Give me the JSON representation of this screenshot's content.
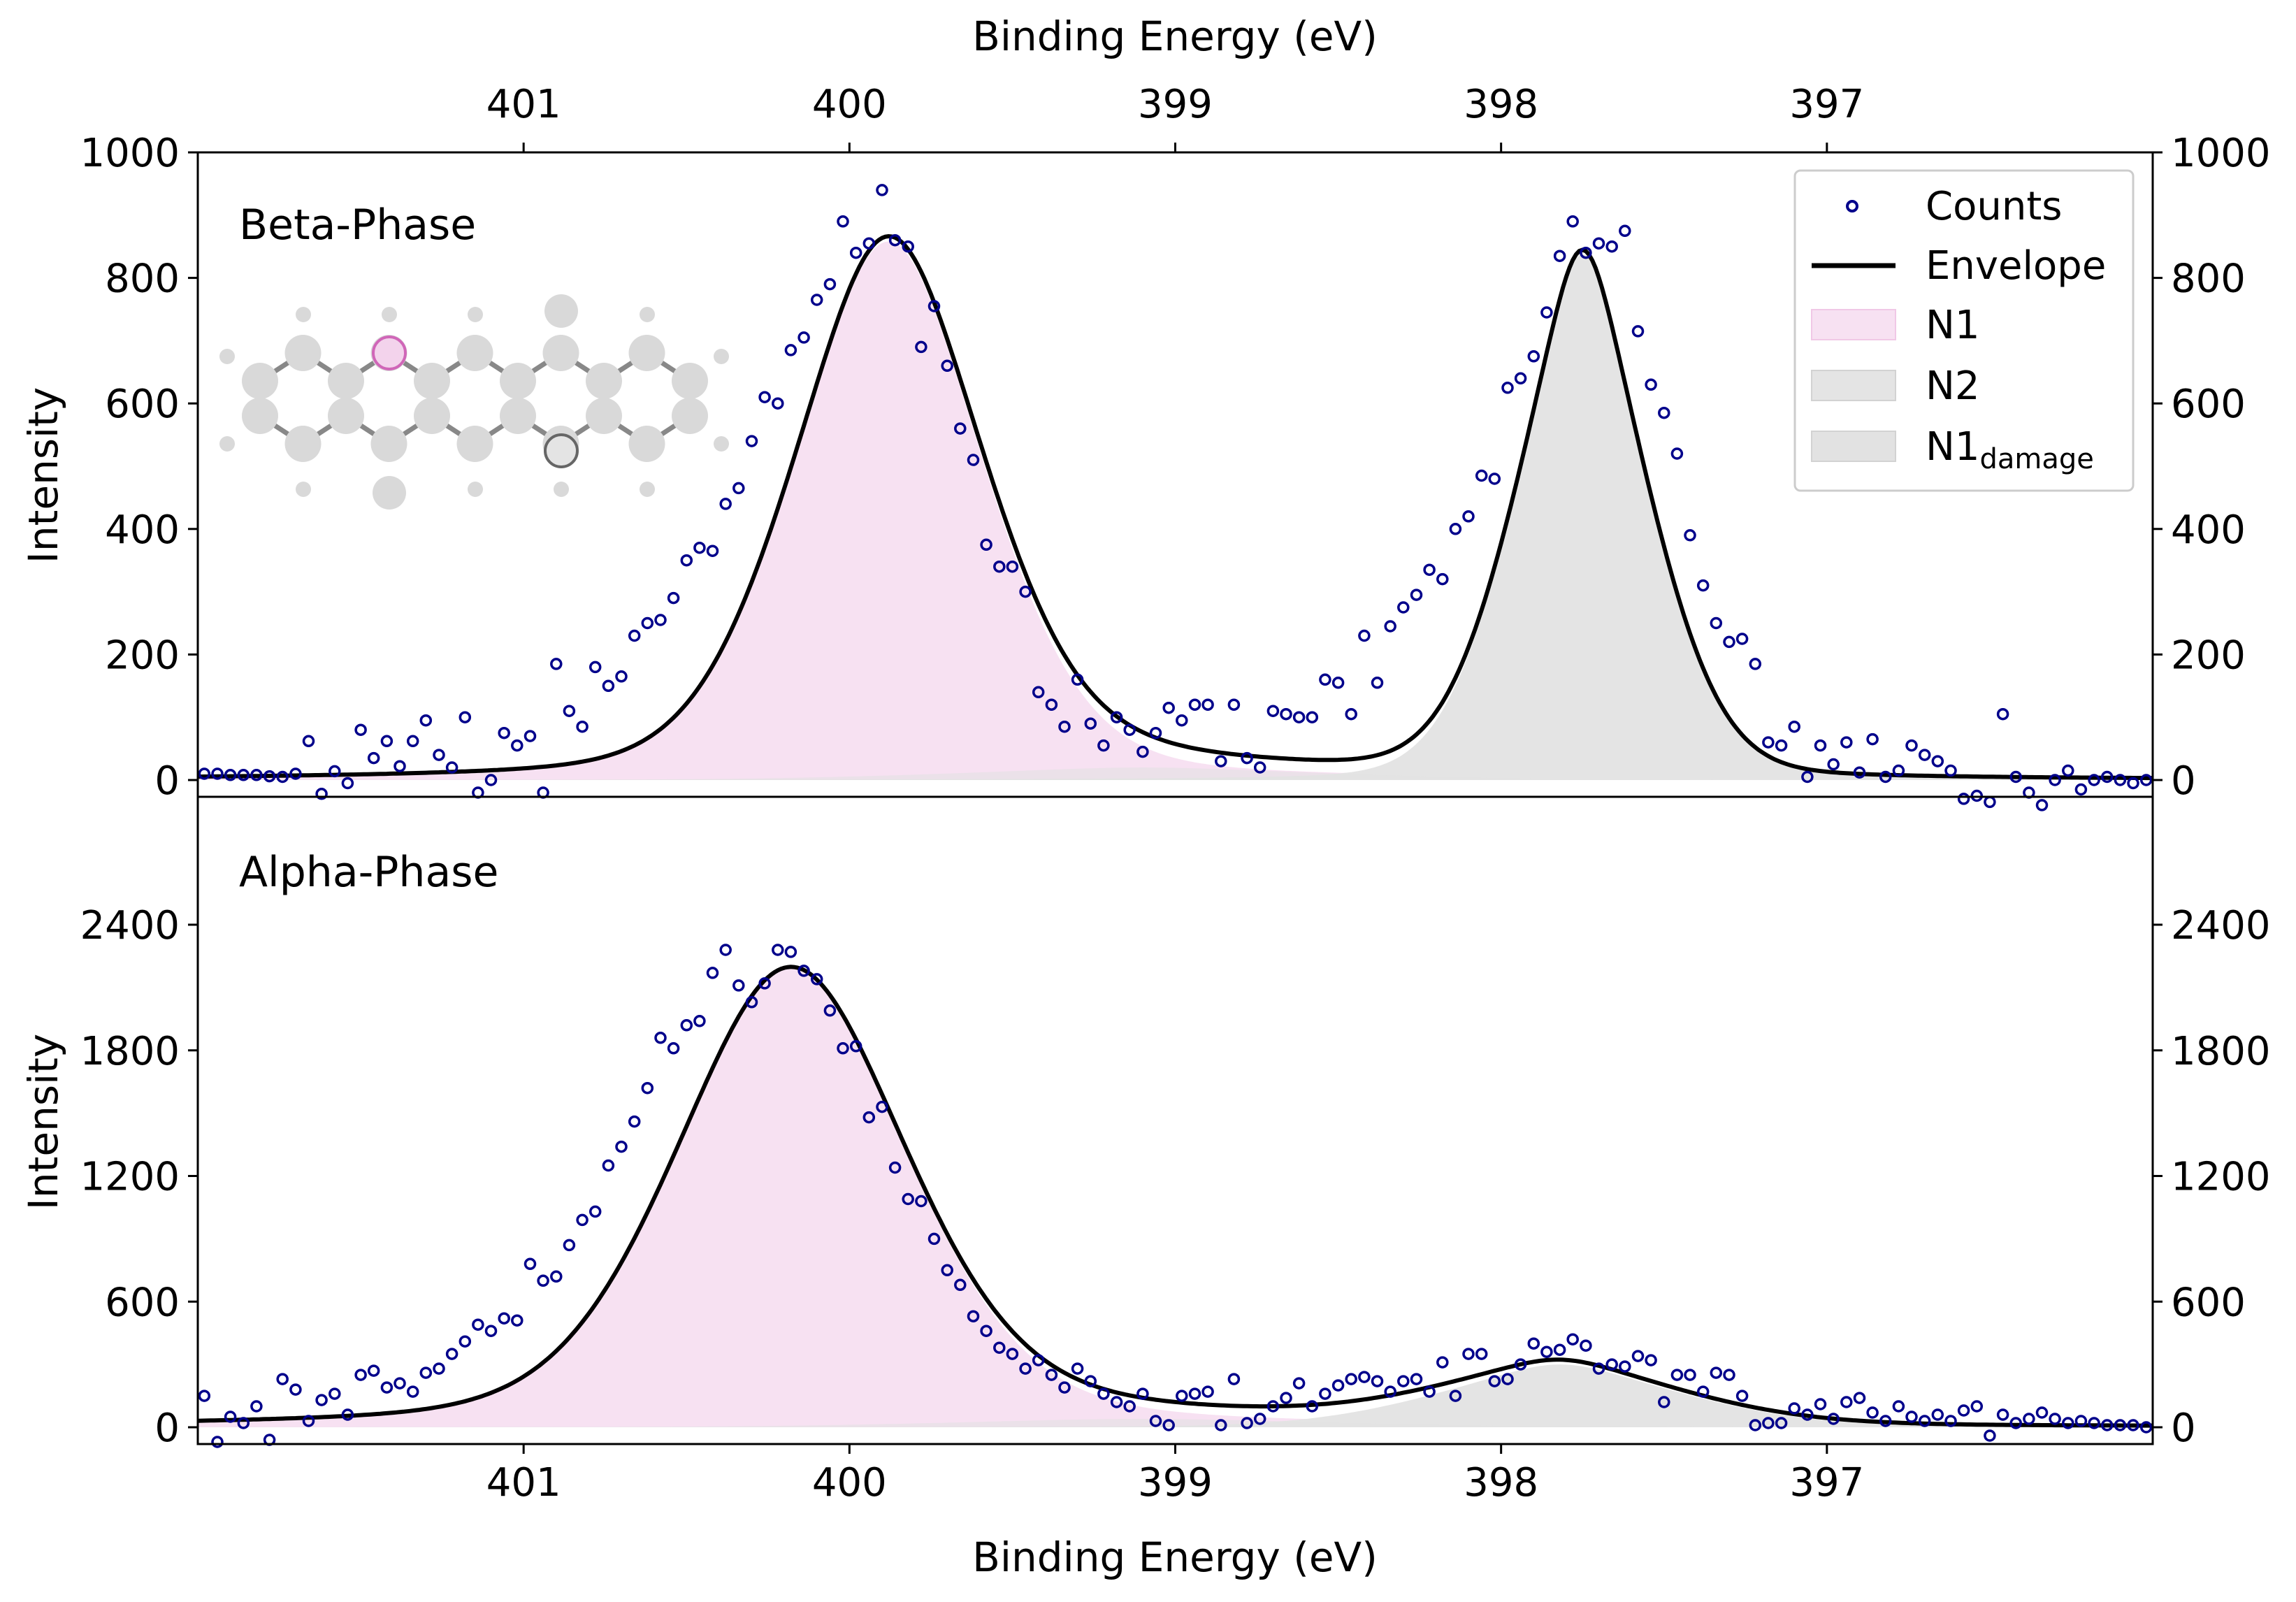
{
  "chart_data": [
    {
      "panel": "top",
      "type": "scatter",
      "title": "Beta-Phase",
      "xlabel_top": "Binding Energy (eV)",
      "ylabel": "Intensity",
      "xlim": [
        402.0,
        396.0
      ],
      "ylim": [
        -30,
        1000
      ],
      "xticks": [
        401,
        400,
        399,
        398,
        397
      ],
      "yticks": [
        0,
        200,
        400,
        600,
        800,
        1000
      ],
      "colors": {
        "counts": "#00008b",
        "envelope": "#000000",
        "N1": "#f7e1f2",
        "N2": "#e4e4e4",
        "N1_damage": "#e2e2e2"
      },
      "legend": {
        "placement": "top-right",
        "entries": [
          {
            "label": "Counts",
            "kind": "marker"
          },
          {
            "label": "Envelope",
            "kind": "line"
          },
          {
            "label": "N1",
            "kind": "patch",
            "color": "#f7e1f2"
          },
          {
            "label": "N2",
            "kind": "patch",
            "color": "#e4e4e4"
          },
          {
            "label": "N1",
            "sub": "damage",
            "kind": "patch",
            "color": "#e2e2e2"
          }
        ]
      },
      "components": [
        {
          "name": "N1",
          "center": 399.88,
          "amplitude": 858,
          "sigma": 0.3,
          "gamma": 0.3
        },
        {
          "name": "N2",
          "center": 397.75,
          "amplitude": 838,
          "sigma": 0.22,
          "gamma": 0.14
        },
        {
          "name": "N1 damage",
          "center": 399.1,
          "amplitude": 20,
          "sigma": 0.6,
          "gamma": 0.4
        }
      ],
      "counts": [
        [
          401.98,
          10
        ],
        [
          401.94,
          10
        ],
        [
          401.9,
          8
        ],
        [
          401.86,
          8
        ],
        [
          401.82,
          8
        ],
        [
          401.78,
          6
        ],
        [
          401.74,
          5
        ],
        [
          401.7,
          10
        ],
        [
          401.66,
          62
        ],
        [
          401.62,
          -22
        ],
        [
          401.58,
          14
        ],
        [
          401.54,
          -5
        ],
        [
          401.5,
          80
        ],
        [
          401.46,
          35
        ],
        [
          401.42,
          62
        ],
        [
          401.38,
          22
        ],
        [
          401.34,
          62
        ],
        [
          401.3,
          95
        ],
        [
          401.26,
          40
        ],
        [
          401.22,
          20
        ],
        [
          401.18,
          100
        ],
        [
          401.14,
          -20
        ],
        [
          401.1,
          0
        ],
        [
          401.06,
          75
        ],
        [
          401.02,
          55
        ],
        [
          400.98,
          70
        ],
        [
          400.94,
          -20
        ],
        [
          400.9,
          185
        ],
        [
          400.86,
          110
        ],
        [
          400.82,
          85
        ],
        [
          400.78,
          180
        ],
        [
          400.74,
          150
        ],
        [
          400.7,
          165
        ],
        [
          400.66,
          230
        ],
        [
          400.62,
          250
        ],
        [
          400.58,
          255
        ],
        [
          400.54,
          290
        ],
        [
          400.5,
          350
        ],
        [
          400.46,
          370
        ],
        [
          400.42,
          365
        ],
        [
          400.38,
          440
        ],
        [
          400.34,
          465
        ],
        [
          400.3,
          540
        ],
        [
          400.26,
          610
        ],
        [
          400.22,
          600
        ],
        [
          400.18,
          685
        ],
        [
          400.14,
          705
        ],
        [
          400.1,
          765
        ],
        [
          400.06,
          790
        ],
        [
          400.02,
          890
        ],
        [
          399.98,
          840
        ],
        [
          399.94,
          855
        ],
        [
          399.9,
          940
        ],
        [
          399.86,
          860
        ],
        [
          399.82,
          850
        ],
        [
          399.78,
          690
        ],
        [
          399.74,
          755
        ],
        [
          399.7,
          660
        ],
        [
          399.66,
          560
        ],
        [
          399.62,
          510
        ],
        [
          399.58,
          375
        ],
        [
          399.54,
          340
        ],
        [
          399.5,
          340
        ],
        [
          399.46,
          300
        ],
        [
          399.42,
          140
        ],
        [
          399.38,
          120
        ],
        [
          399.34,
          85
        ],
        [
          399.3,
          160
        ],
        [
          399.26,
          90
        ],
        [
          399.22,
          55
        ],
        [
          399.18,
          100
        ],
        [
          399.14,
          80
        ],
        [
          399.1,
          45
        ],
        [
          399.06,
          75
        ],
        [
          399.02,
          115
        ],
        [
          398.98,
          95
        ],
        [
          398.94,
          120
        ],
        [
          398.9,
          120
        ],
        [
          398.86,
          30
        ],
        [
          398.82,
          120
        ],
        [
          398.78,
          35
        ],
        [
          398.74,
          20
        ],
        [
          398.7,
          110
        ],
        [
          398.66,
          105
        ],
        [
          398.62,
          100
        ],
        [
          398.58,
          100
        ],
        [
          398.54,
          160
        ],
        [
          398.5,
          155
        ],
        [
          398.46,
          105
        ],
        [
          398.42,
          230
        ],
        [
          398.38,
          155
        ],
        [
          398.34,
          245
        ],
        [
          398.3,
          275
        ],
        [
          398.26,
          295
        ],
        [
          398.22,
          335
        ],
        [
          398.18,
          320
        ],
        [
          398.14,
          400
        ],
        [
          398.1,
          420
        ],
        [
          398.06,
          485
        ],
        [
          398.02,
          480
        ],
        [
          397.98,
          625
        ],
        [
          397.94,
          640
        ],
        [
          397.9,
          675
        ],
        [
          397.86,
          745
        ],
        [
          397.82,
          835
        ],
        [
          397.78,
          890
        ],
        [
          397.74,
          840
        ],
        [
          397.7,
          855
        ],
        [
          397.66,
          850
        ],
        [
          397.62,
          875
        ],
        [
          397.58,
          715
        ],
        [
          397.54,
          630
        ],
        [
          397.5,
          585
        ],
        [
          397.46,
          520
        ],
        [
          397.42,
          390
        ],
        [
          397.38,
          310
        ],
        [
          397.34,
          250
        ],
        [
          397.3,
          220
        ],
        [
          397.26,
          225
        ],
        [
          397.22,
          185
        ],
        [
          397.18,
          60
        ],
        [
          397.14,
          55
        ],
        [
          397.1,
          85
        ],
        [
          397.06,
          5
        ],
        [
          397.02,
          55
        ],
        [
          396.98,
          25
        ],
        [
          396.94,
          60
        ],
        [
          396.9,
          12
        ],
        [
          396.86,
          65
        ],
        [
          396.82,
          5
        ],
        [
          396.78,
          15
        ],
        [
          396.74,
          55
        ],
        [
          396.7,
          40
        ],
        [
          396.66,
          30
        ],
        [
          396.62,
          15
        ],
        [
          396.58,
          -30
        ],
        [
          396.54,
          -25
        ],
        [
          396.5,
          -35
        ],
        [
          396.46,
          105
        ],
        [
          396.42,
          5
        ],
        [
          396.38,
          -20
        ],
        [
          396.34,
          -40
        ],
        [
          396.3,
          0
        ],
        [
          396.26,
          15
        ],
        [
          396.22,
          -15
        ],
        [
          396.18,
          0
        ],
        [
          396.14,
          5
        ],
        [
          396.1,
          0
        ],
        [
          396.06,
          -5
        ],
        [
          396.02,
          0
        ]
      ]
    },
    {
      "panel": "bottom",
      "type": "scatter",
      "title": "Alpha-Phase",
      "xlabel": "Binding Energy (eV)",
      "ylabel": "Intensity",
      "xlim": [
        402.0,
        396.0
      ],
      "ylim": [
        -90,
        3100
      ],
      "xticks": [
        401,
        400,
        399,
        398,
        397
      ],
      "yticks": [
        0,
        600,
        1200,
        1800,
        2400
      ],
      "components": [
        {
          "name": "N1",
          "center": 400.18,
          "amplitude": 2190,
          "sigma": 0.36,
          "gamma": 0.4
        },
        {
          "name": "N2",
          "center": 397.82,
          "amplitude": 300,
          "sigma": 0.4,
          "gamma": 0.25
        },
        {
          "name": "N1 damage",
          "center": 399.1,
          "amplitude": 40,
          "sigma": 0.6,
          "gamma": 0.5
        }
      ],
      "counts": [
        [
          401.98,
          150
        ],
        [
          401.94,
          -70
        ],
        [
          401.9,
          50
        ],
        [
          401.86,
          20
        ],
        [
          401.82,
          100
        ],
        [
          401.78,
          -60
        ],
        [
          401.74,
          230
        ],
        [
          401.7,
          180
        ],
        [
          401.66,
          30
        ],
        [
          401.62,
          130
        ],
        [
          401.58,
          160
        ],
        [
          401.54,
          60
        ],
        [
          401.5,
          250
        ],
        [
          401.46,
          270
        ],
        [
          401.42,
          190
        ],
        [
          401.38,
          210
        ],
        [
          401.34,
          170
        ],
        [
          401.3,
          260
        ],
        [
          401.26,
          280
        ],
        [
          401.22,
          350
        ],
        [
          401.18,
          410
        ],
        [
          401.14,
          490
        ],
        [
          401.1,
          460
        ],
        [
          401.06,
          520
        ],
        [
          401.02,
          510
        ],
        [
          400.98,
          780
        ],
        [
          400.94,
          700
        ],
        [
          400.9,
          720
        ],
        [
          400.86,
          870
        ],
        [
          400.82,
          990
        ],
        [
          400.78,
          1030
        ],
        [
          400.74,
          1250
        ],
        [
          400.7,
          1340
        ],
        [
          400.66,
          1460
        ],
        [
          400.62,
          1620
        ],
        [
          400.58,
          1860
        ],
        [
          400.54,
          1810
        ],
        [
          400.5,
          1920
        ],
        [
          400.46,
          1940
        ],
        [
          400.42,
          2170
        ],
        [
          400.38,
          2280
        ],
        [
          400.34,
          2110
        ],
        [
          400.3,
          2030
        ],
        [
          400.26,
          2120
        ],
        [
          400.22,
          2280
        ],
        [
          400.18,
          2270
        ],
        [
          400.14,
          2180
        ],
        [
          400.1,
          2140
        ],
        [
          400.06,
          1990
        ],
        [
          400.02,
          1810
        ],
        [
          399.98,
          1820
        ],
        [
          399.94,
          1480
        ],
        [
          399.9,
          1530
        ],
        [
          399.86,
          1240
        ],
        [
          399.82,
          1090
        ],
        [
          399.78,
          1080
        ],
        [
          399.74,
          900
        ],
        [
          399.7,
          750
        ],
        [
          399.66,
          680
        ],
        [
          399.62,
          530
        ],
        [
          399.58,
          460
        ],
        [
          399.54,
          380
        ],
        [
          399.5,
          350
        ],
        [
          399.46,
          280
        ],
        [
          399.42,
          320
        ],
        [
          399.38,
          250
        ],
        [
          399.34,
          190
        ],
        [
          399.3,
          280
        ],
        [
          399.26,
          220
        ],
        [
          399.22,
          160
        ],
        [
          399.18,
          120
        ],
        [
          399.14,
          100
        ],
        [
          399.1,
          160
        ],
        [
          399.06,
          30
        ],
        [
          399.02,
          10
        ],
        [
          398.98,
          150
        ],
        [
          398.94,
          160
        ],
        [
          398.9,
          170
        ],
        [
          398.86,
          10
        ],
        [
          398.82,
          230
        ],
        [
          398.78,
          20
        ],
        [
          398.74,
          40
        ],
        [
          398.7,
          100
        ],
        [
          398.66,
          140
        ],
        [
          398.62,
          210
        ],
        [
          398.58,
          100
        ],
        [
          398.54,
          160
        ],
        [
          398.5,
          200
        ],
        [
          398.46,
          230
        ],
        [
          398.42,
          240
        ],
        [
          398.38,
          220
        ],
        [
          398.34,
          170
        ],
        [
          398.3,
          220
        ],
        [
          398.26,
          230
        ],
        [
          398.22,
          170
        ],
        [
          398.18,
          310
        ],
        [
          398.14,
          150
        ],
        [
          398.1,
          350
        ],
        [
          398.06,
          350
        ],
        [
          398.02,
          220
        ],
        [
          397.98,
          230
        ],
        [
          397.94,
          300
        ],
        [
          397.9,
          400
        ],
        [
          397.86,
          360
        ],
        [
          397.82,
          370
        ],
        [
          397.78,
          420
        ],
        [
          397.74,
          390
        ],
        [
          397.7,
          280
        ],
        [
          397.66,
          300
        ],
        [
          397.62,
          290
        ],
        [
          397.58,
          340
        ],
        [
          397.54,
          320
        ],
        [
          397.5,
          120
        ],
        [
          397.46,
          250
        ],
        [
          397.42,
          250
        ],
        [
          397.38,
          170
        ],
        [
          397.34,
          260
        ],
        [
          397.3,
          250
        ],
        [
          397.26,
          150
        ],
        [
          397.22,
          10
        ],
        [
          397.18,
          20
        ],
        [
          397.14,
          20
        ],
        [
          397.1,
          90
        ],
        [
          397.06,
          60
        ],
        [
          397.02,
          110
        ],
        [
          396.98,
          40
        ],
        [
          396.94,
          120
        ],
        [
          396.9,
          140
        ],
        [
          396.86,
          70
        ],
        [
          396.82,
          30
        ],
        [
          396.78,
          100
        ],
        [
          396.74,
          50
        ],
        [
          396.7,
          30
        ],
        [
          396.66,
          60
        ],
        [
          396.62,
          30
        ],
        [
          396.58,
          80
        ],
        [
          396.54,
          100
        ],
        [
          396.5,
          -40
        ],
        [
          396.46,
          60
        ],
        [
          396.42,
          20
        ],
        [
          396.38,
          40
        ],
        [
          396.34,
          70
        ],
        [
          396.3,
          40
        ],
        [
          396.26,
          20
        ],
        [
          396.22,
          30
        ],
        [
          396.18,
          20
        ],
        [
          396.14,
          10
        ],
        [
          396.1,
          10
        ],
        [
          396.06,
          10
        ],
        [
          396.02,
          0
        ]
      ]
    }
  ]
}
